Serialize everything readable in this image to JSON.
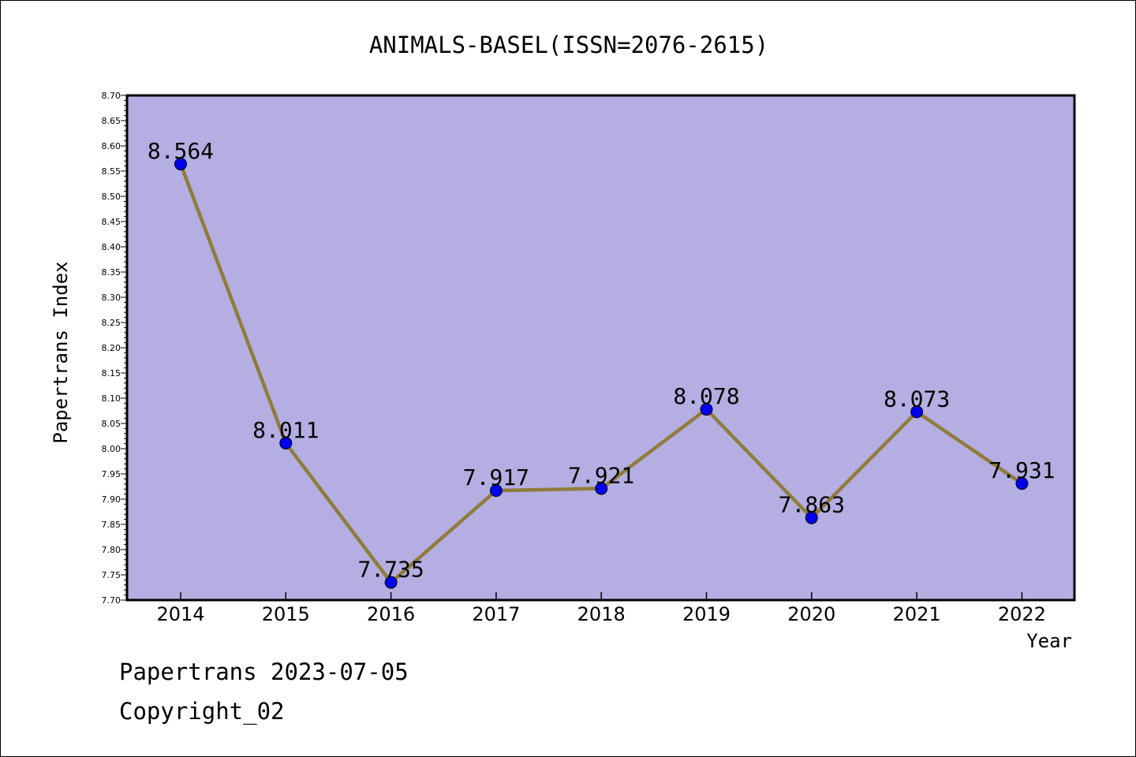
{
  "chart_data": {
    "type": "line",
    "title": "ANIMALS-BASEL(ISSN=2076-2615)",
    "xlabel": "Year",
    "ylabel": "Papertrans Index",
    "categories": [
      "2014",
      "2015",
      "2016",
      "2017",
      "2018",
      "2019",
      "2020",
      "2021",
      "2022"
    ],
    "series": [
      {
        "values": [
          8.564,
          8.011,
          7.735,
          7.917,
          7.921,
          8.078,
          7.863,
          8.073,
          7.931
        ],
        "labels": [
          "8.564",
          "8.011",
          "7.735",
          "7.917",
          "7.921",
          "8.078",
          "7.863",
          "8.073",
          "7.931"
        ]
      }
    ],
    "ylim": [
      7.7,
      8.7
    ],
    "yticks": [
      "7.70",
      "7.75",
      "7.80",
      "7.85",
      "7.90",
      "7.95",
      "8.00",
      "8.05",
      "8.10",
      "8.15",
      "8.20",
      "8.25",
      "8.30",
      "8.35",
      "8.40",
      "8.45",
      "8.50",
      "8.55",
      "8.60",
      "8.65",
      "8.70"
    ],
    "grid": false,
    "colors": {
      "plot_background": "#b4aee2",
      "line": "#8f7c3a",
      "marker": "#0000ee"
    }
  },
  "footer": {
    "line1": "Papertrans 2023-07-05",
    "line2": "Copyright_02"
  }
}
